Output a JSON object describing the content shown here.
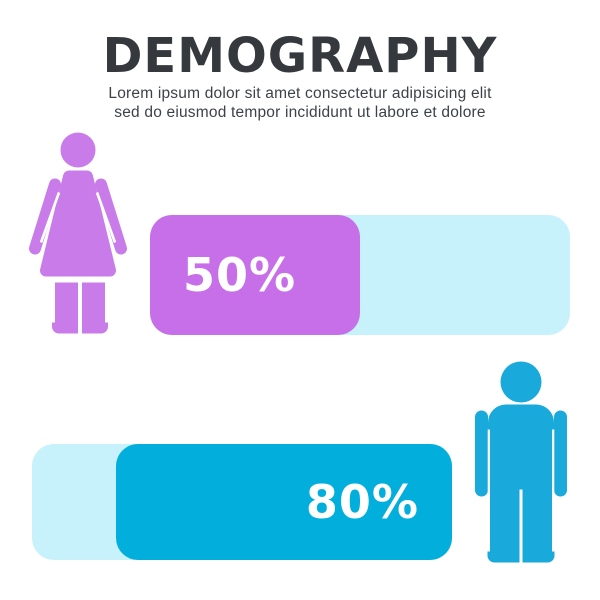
{
  "header": {
    "title": "DEMOGRAPHY",
    "subtitle_line1": "Lorem ipsum dolor sit amet consectetur adipisicing elit",
    "subtitle_line2": "sed do eiusmod tempor incididunt ut labore et dolore"
  },
  "chart_data": {
    "type": "bar",
    "orientation": "horizontal",
    "title": "DEMOGRAPHY",
    "subtitle": "Lorem ipsum dolor sit amet consectetur adipisicing elit sed do eiusmod tempor incididunt ut labore et dolore",
    "categories": [
      "Women",
      "Men"
    ],
    "series": [
      {
        "name": "Women",
        "value": 50,
        "label": "50%",
        "fill_color": "#c76fe9",
        "track_color": "#c7f1fb",
        "label_position": "left-inside",
        "icon": "woman-icon",
        "icon_color": "#c87be9",
        "icon_side": "left"
      },
      {
        "name": "Men",
        "value": 80,
        "label": "80%",
        "fill_color": "#02aedb",
        "track_color": "#c7f1fb",
        "label_position": "right-inside",
        "icon": "man-icon",
        "icon_color": "#1aa9db",
        "icon_side": "right",
        "fill_anchor": "right"
      }
    ],
    "value_range": [
      0,
      100
    ],
    "value_format": "percent",
    "legend": "none",
    "grid": "off"
  },
  "colors": {
    "bg": "#ffffff",
    "title-color": "#35393e",
    "subtitle-color": "#3d4248",
    "female-purple": "#c76fe9",
    "female-figure": "#c87be9",
    "male-cyan": "#02aedb",
    "male-figure": "#1aa9db",
    "bar-track": "#c7f1fb",
    "percent-text": "#ffffff"
  }
}
